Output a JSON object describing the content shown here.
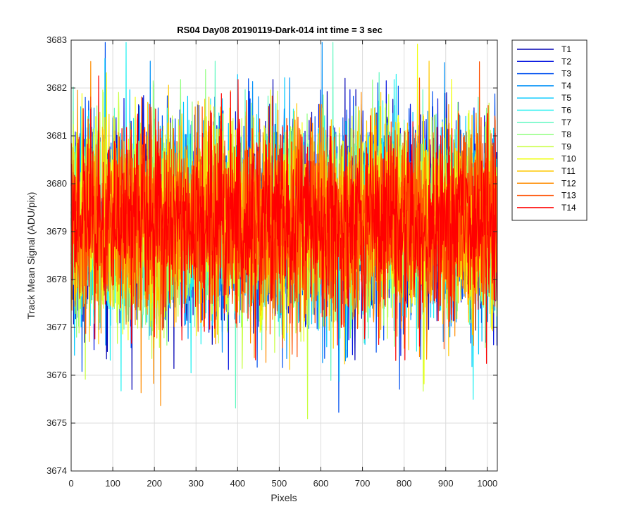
{
  "chart_data": {
    "type": "line",
    "title": "RS04 Day08 20190119-Dark-014 int time = 3 sec",
    "xlabel": "Pixels",
    "ylabel": "Track Mean Signal (ADU/pix)",
    "xlim": [
      0,
      1024
    ],
    "ylim": [
      3674,
      3683
    ],
    "x_ticks": [
      "0",
      "100",
      "200",
      "300",
      "400",
      "500",
      "600",
      "700",
      "800",
      "900",
      "1000"
    ],
    "y_ticks": [
      "3674",
      "3675",
      "3676",
      "3677",
      "3678",
      "3679",
      "3680",
      "3681",
      "3682",
      "3683"
    ],
    "grid": true,
    "legend": "outside-top-right",
    "series_center": 3679.2,
    "series_std": 1.0,
    "points_per_series": 1024,
    "series": [
      {
        "name": "T1",
        "color": "#0000b4"
      },
      {
        "name": "T2",
        "color": "#0010e0"
      },
      {
        "name": "T3",
        "color": "#0050f0"
      },
      {
        "name": "T4",
        "color": "#0090f8"
      },
      {
        "name": "T5",
        "color": "#00c8ff"
      },
      {
        "name": "T6",
        "color": "#20f0f0"
      },
      {
        "name": "T7",
        "color": "#60f8c0"
      },
      {
        "name": "T8",
        "color": "#90ff80"
      },
      {
        "name": "T9",
        "color": "#c8ff40"
      },
      {
        "name": "T10",
        "color": "#f0ff10"
      },
      {
        "name": "T11",
        "color": "#ffc800"
      },
      {
        "name": "T12",
        "color": "#ff8c00"
      },
      {
        "name": "T13",
        "color": "#ff5000"
      },
      {
        "name": "T14",
        "color": "#ff0000"
      }
    ]
  }
}
